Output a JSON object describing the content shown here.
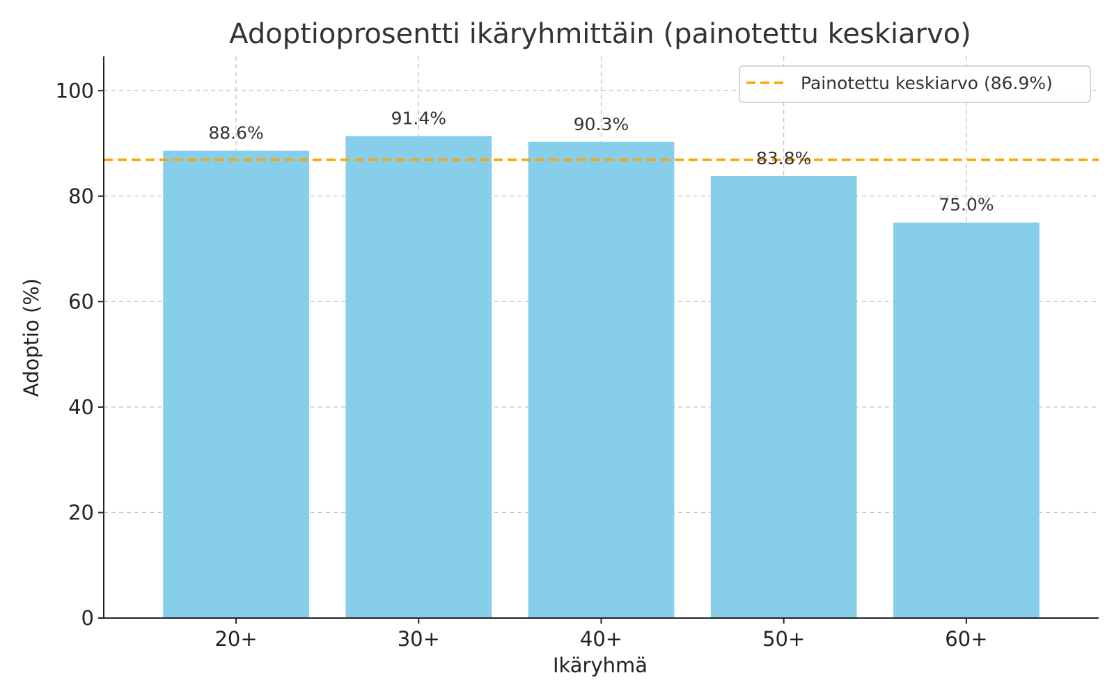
{
  "chart_data": {
    "type": "bar",
    "title": "Adoptioprosentti ikäryhmittäin (painotettu keskiarvo)",
    "xlabel": "Ikäryhmä",
    "ylabel": "Adoptio (%)",
    "categories": [
      "20+",
      "30+",
      "40+",
      "50+",
      "60+"
    ],
    "values": [
      88.6,
      91.4,
      90.3,
      83.8,
      75.0
    ],
    "value_labels": [
      "88.6%",
      "91.4%",
      "90.3%",
      "83.8%",
      "75.0%"
    ],
    "ylim": [
      0,
      106.5
    ],
    "yticks": [
      0,
      20,
      40,
      60,
      80,
      100
    ],
    "grid": true,
    "bar_color": "#87CEEB",
    "reference_line": {
      "label": "Painotettu keskiarvo (86.9%)",
      "value": 86.9,
      "color": "#FFA500",
      "style": "dashed"
    },
    "legend": {
      "position": "top-right"
    }
  }
}
